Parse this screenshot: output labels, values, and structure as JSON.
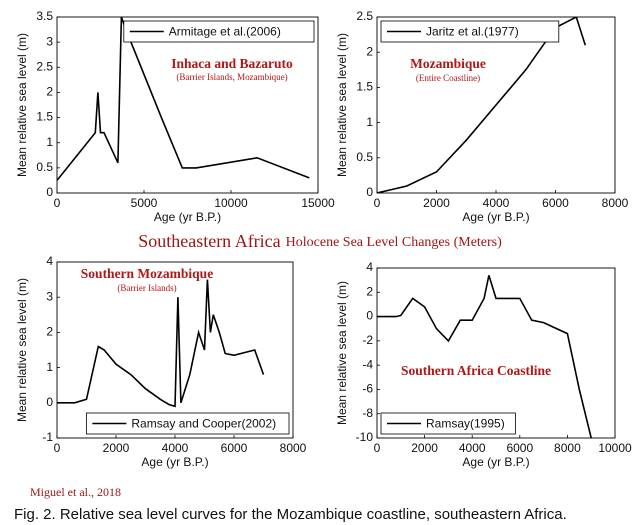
{
  "figure_title": {
    "main": "Southeastern Africa",
    "sub": "Holocene Sea Level Changes (Meters)"
  },
  "source": "Miguel et al., 2018",
  "caption": "Fig. 2. Relative sea level curves for the Mozambique coastline, southeastern Africa.",
  "chart_data": [
    {
      "type": "line",
      "x_label": "Age (yr B.P.)",
      "y_label": "Mean relative sea level (m)",
      "annotations": [
        "Inhaca and Bazaruto",
        "(Barrier Islands, Mozambique)"
      ],
      "xlim": [
        0,
        15000
      ],
      "xticks": [
        0,
        5000,
        10000,
        15000
      ],
      "ylim": [
        0,
        3.5
      ],
      "yticks": [
        0,
        0.5,
        1,
        1.5,
        2,
        2.5,
        3,
        3.5
      ],
      "legend": "upper right",
      "x": [
        0,
        2200,
        2350,
        2500,
        2700,
        3500,
        3700,
        3900,
        6000,
        7200,
        8000,
        11500,
        14500
      ],
      "series": [
        {
          "name": "Armitage et al.(2006)",
          "color": "#000000",
          "values": [
            0.25,
            1.2,
            2.0,
            1.2,
            1.2,
            0.6,
            3.5,
            3.3,
            1.5,
            0.5,
            0.5,
            0.7,
            0.3
          ]
        }
      ]
    },
    {
      "type": "line",
      "x_label": "Age (yr B.P.)",
      "y_label": "Mean relative sea level (m)",
      "annotations": [
        "Mozambique",
        "(Entire Coastline)"
      ],
      "xlim": [
        0,
        8000
      ],
      "xticks": [
        0,
        2000,
        4000,
        6000,
        8000
      ],
      "ylim": [
        0,
        2.5
      ],
      "yticks": [
        0,
        0.5,
        1,
        1.5,
        2,
        2.5
      ],
      "legend": "upper left",
      "x": [
        0,
        1000,
        2000,
        3000,
        4000,
        5000,
        6000,
        6700,
        7000
      ],
      "series": [
        {
          "name": "Jaritz et al.(1977)",
          "color": "#000000",
          "values": [
            0,
            0.1,
            0.3,
            0.75,
            1.25,
            1.75,
            2.35,
            2.5,
            2.1
          ]
        }
      ]
    },
    {
      "type": "line",
      "x_label": "Age (yr B.P.)",
      "y_label": "Mean relative sea level (m)",
      "annotations": [
        "Southern Mozambique",
        "(Barrier Islands)"
      ],
      "xlim": [
        0,
        8000
      ],
      "xticks": [
        0,
        2000,
        4000,
        6000,
        8000
      ],
      "ylim": [
        -1,
        4
      ],
      "yticks": [
        -1,
        0,
        1,
        2,
        3,
        4
      ],
      "legend": "lower right",
      "x": [
        0,
        600,
        1000,
        1400,
        1600,
        2000,
        2500,
        3000,
        3500,
        3800,
        4000,
        4100,
        4200,
        4500,
        4800,
        5000,
        5100,
        5200,
        5300,
        5500,
        5700,
        6000,
        6700,
        7000
      ],
      "series": [
        {
          "name": "Ramsay and Cooper(2002)",
          "color": "#000000",
          "values": [
            0,
            0,
            0.1,
            1.6,
            1.5,
            1.1,
            0.8,
            0.4,
            0.1,
            -0.05,
            -0.1,
            3.0,
            0,
            0.8,
            2.0,
            1.5,
            3.5,
            2.0,
            2.5,
            2.0,
            1.4,
            1.35,
            1.5,
            0.8
          ]
        }
      ]
    },
    {
      "type": "line",
      "x_label": "Age (yr B.P.)",
      "y_label": "Mean relative sea level (m)",
      "annotations": [
        "Southern Africa Coastline"
      ],
      "xlim": [
        0,
        10000
      ],
      "xticks": [
        0,
        2000,
        4000,
        6000,
        8000,
        10000
      ],
      "ylim": [
        -10,
        4
      ],
      "yticks": [
        -10,
        -8,
        -6,
        -4,
        -2,
        0,
        2,
        4
      ],
      "legend": "lower left",
      "x": [
        0,
        800,
        1000,
        1500,
        2000,
        2500,
        3000,
        3500,
        4000,
        4500,
        4700,
        5000,
        6000,
        6500,
        7000,
        8000,
        8500,
        9000
      ],
      "series": [
        {
          "name": "Ramsay(1995)",
          "color": "#000000",
          "values": [
            0,
            0,
            0.1,
            1.5,
            0.8,
            -1,
            -2,
            -0.3,
            -0.3,
            1.5,
            3.4,
            1.5,
            1.5,
            -0.3,
            -0.5,
            -1.4,
            -6,
            -10
          ]
        }
      ]
    }
  ]
}
